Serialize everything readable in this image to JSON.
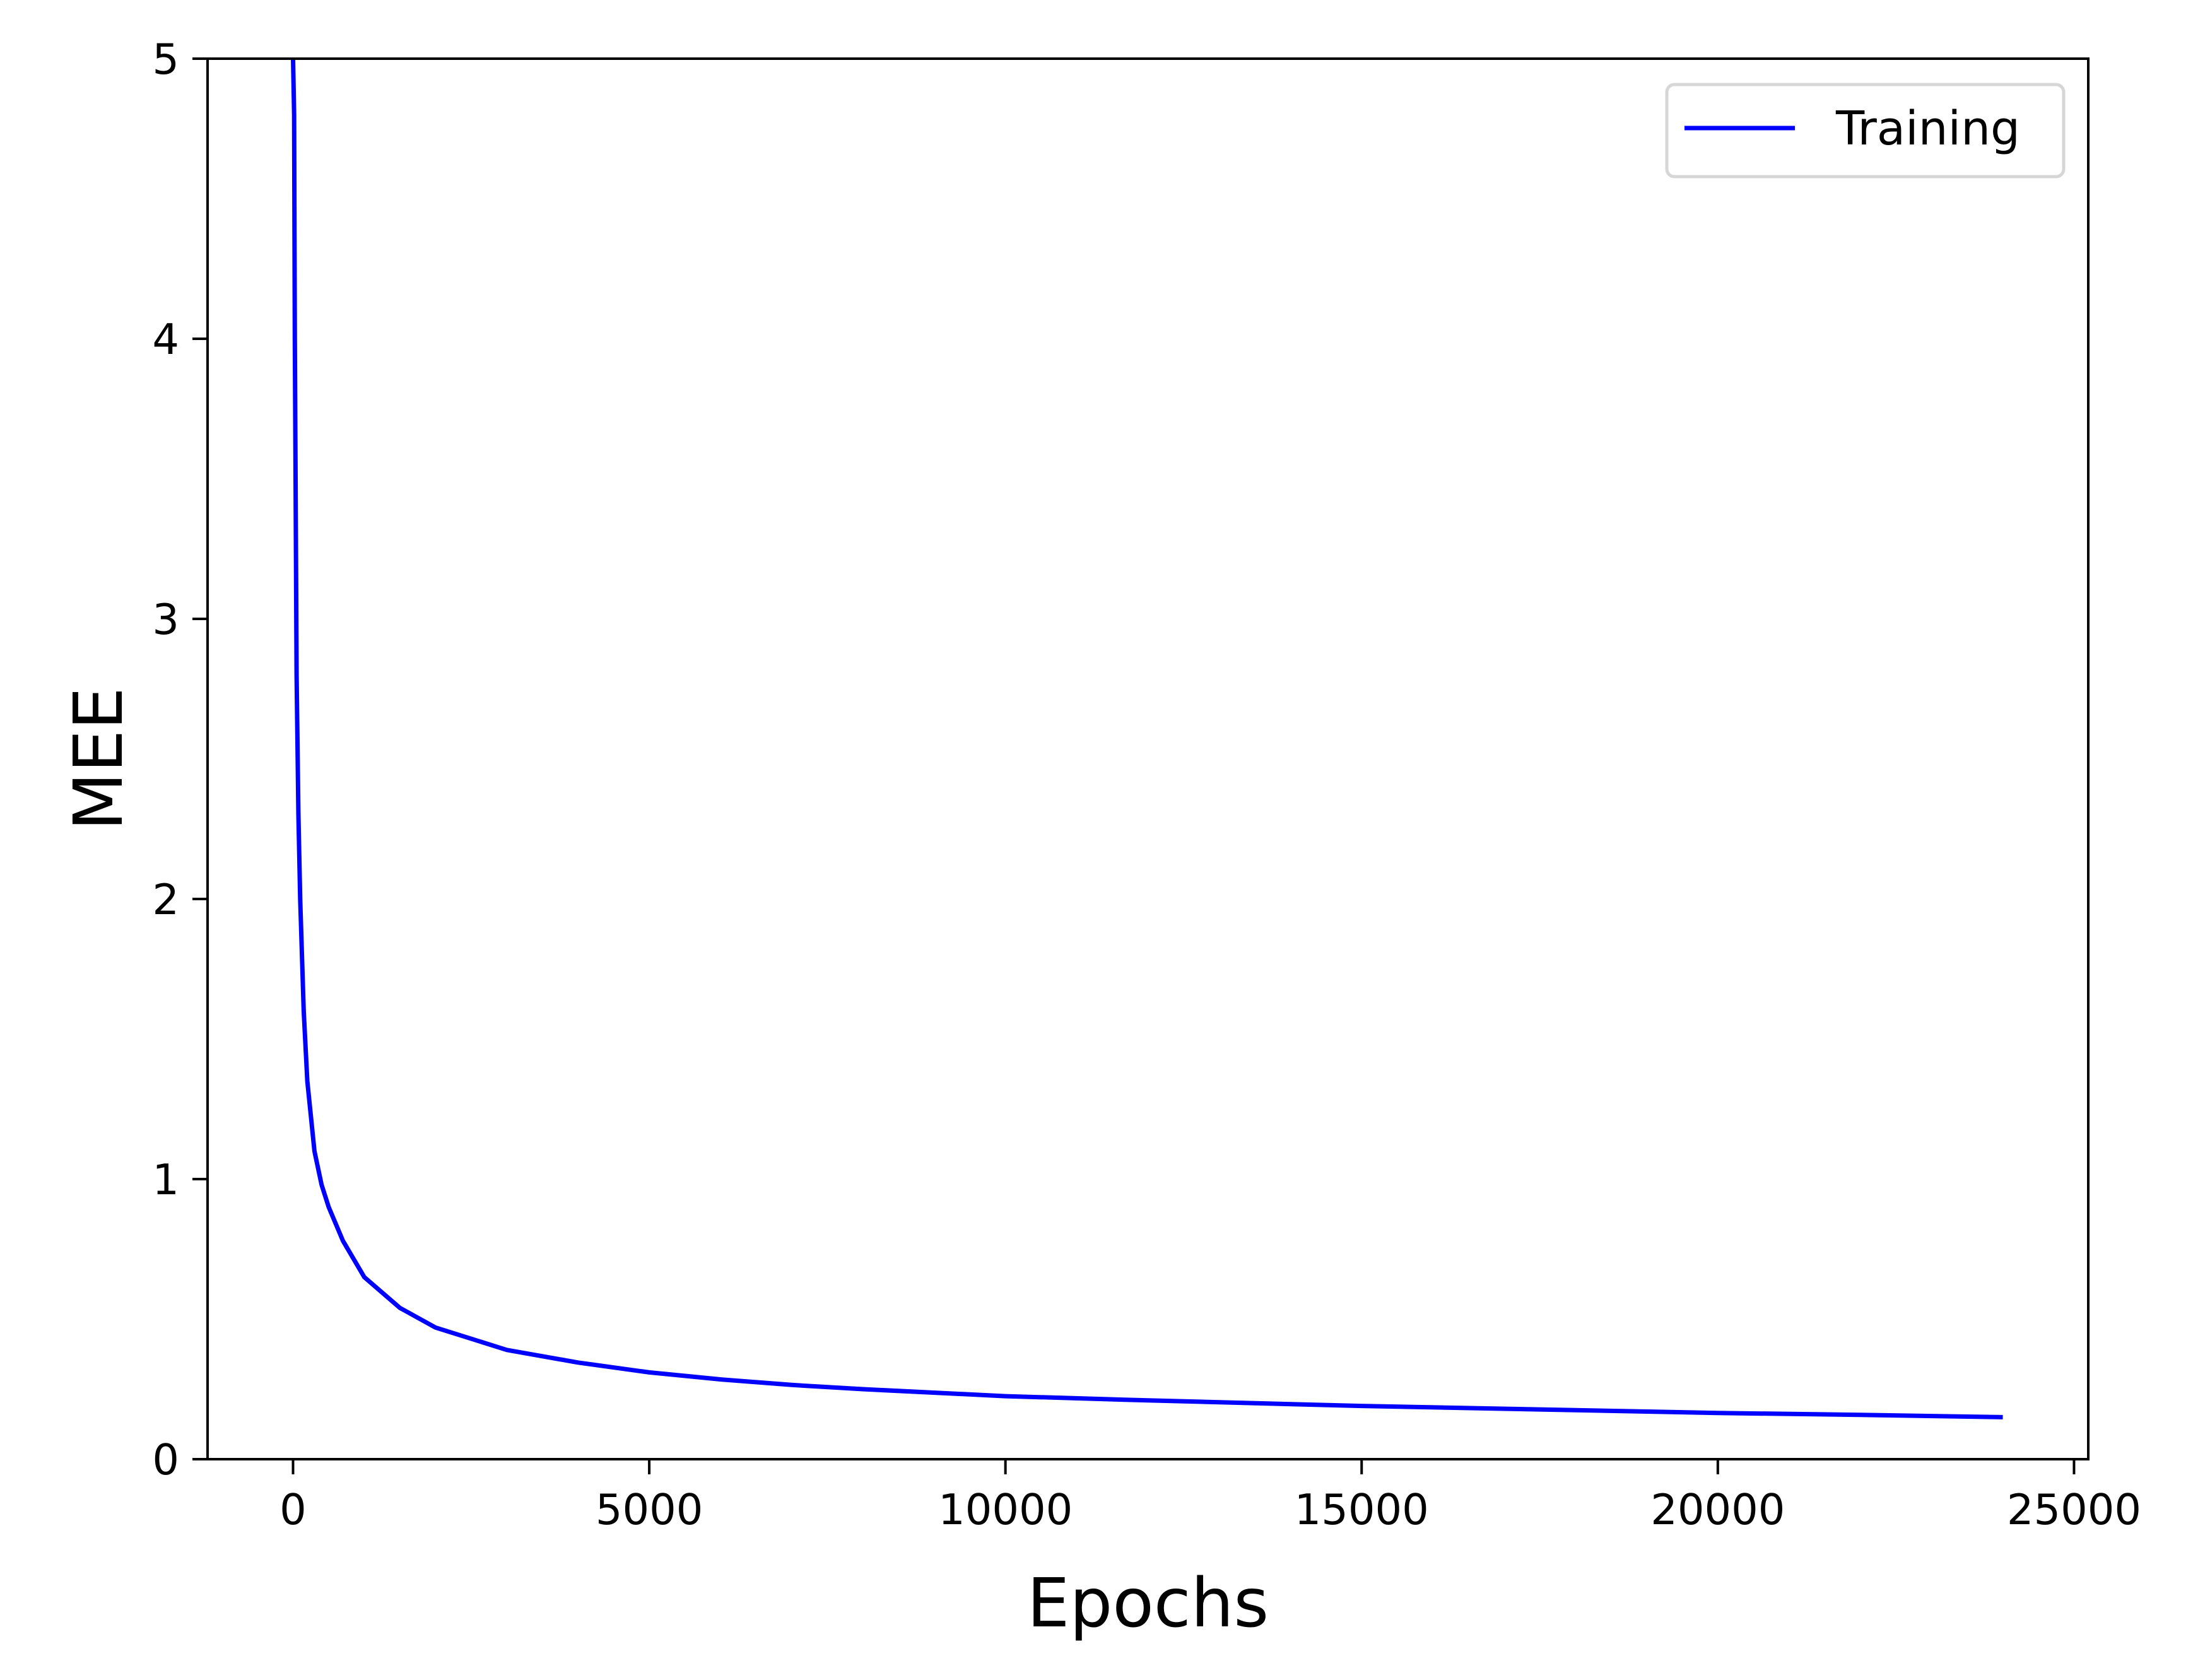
{
  "chart_data": {
    "type": "line",
    "title": "",
    "xlabel": "Epochs",
    "ylabel": "MEE",
    "xlim": [
      -1200,
      25200
    ],
    "ylim": [
      0,
      5
    ],
    "xticks": [
      0,
      5000,
      10000,
      15000,
      20000,
      25000
    ],
    "xtick_labels": [
      "0",
      "5000",
      "10000",
      "15000",
      "20000",
      "25000"
    ],
    "yticks": [
      0,
      1,
      2,
      3,
      4,
      5
    ],
    "ytick_labels": [
      "0",
      "1",
      "2",
      "3",
      "4",
      "5"
    ],
    "grid": false,
    "legend_position": "top-right",
    "series": [
      {
        "name": "Training",
        "color": "#0000ff",
        "x": [
          0,
          15,
          25,
          35,
          50,
          75,
          100,
          150,
          200,
          300,
          400,
          500,
          700,
          1000,
          1500,
          2000,
          3000,
          4000,
          5000,
          6000,
          7000,
          8000,
          10000,
          12000,
          15000,
          18000,
          20000,
          22000,
          24000
        ],
        "y": [
          5.0,
          4.8,
          4.0,
          3.5,
          2.8,
          2.3,
          2.0,
          1.6,
          1.35,
          1.1,
          0.98,
          0.9,
          0.78,
          0.65,
          0.54,
          0.47,
          0.39,
          0.345,
          0.31,
          0.285,
          0.265,
          0.25,
          0.225,
          0.21,
          0.19,
          0.175,
          0.165,
          0.158,
          0.15
        ]
      }
    ]
  }
}
